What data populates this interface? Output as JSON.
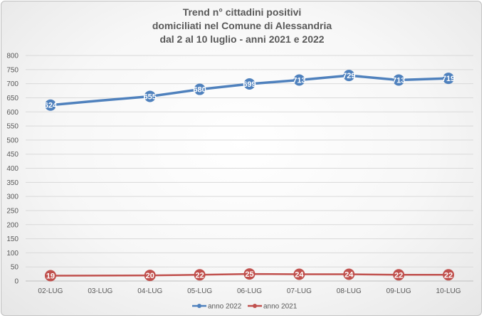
{
  "chart_data": {
    "type": "line",
    "title_lines": [
      "Trend n° cittadini positivi",
      "domiciliati nel Comune di Alessandria",
      "dal 2 al 10 luglio - anni 2021 e 2022"
    ],
    "categories": [
      "02-LUG",
      "03-LUG",
      "04-LUG",
      "05-LUG",
      "06-LUG",
      "07-LUG",
      "08-LUG",
      "09-LUG",
      "10-LUG"
    ],
    "ylim": [
      0,
      800
    ],
    "yticks": [
      0,
      50,
      100,
      150,
      200,
      250,
      300,
      350,
      400,
      450,
      500,
      550,
      600,
      650,
      700,
      750,
      800
    ],
    "grid": true,
    "legend_position": "bottom",
    "series": [
      {
        "name": "anno 2022",
        "color": "#4f81bd",
        "values": [
          624,
          640,
          655,
          680,
          699,
          713,
          729,
          713,
          719
        ],
        "labels": [
          "624",
          "",
          "655",
          "680",
          "699",
          "713",
          "729",
          "713",
          "719"
        ]
      },
      {
        "name": "anno 2021",
        "color": "#c0504d",
        "values": [
          19,
          null,
          20,
          22,
          25,
          24,
          24,
          22,
          22
        ],
        "labels": [
          "19",
          "",
          "20",
          "22",
          "25",
          "24",
          "24",
          "22",
          "22"
        ]
      }
    ]
  }
}
